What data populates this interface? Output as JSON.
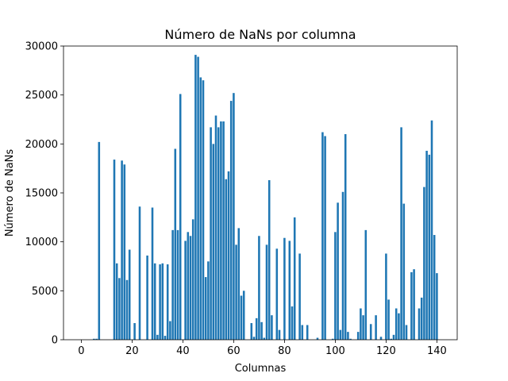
{
  "chart_data": {
    "type": "bar",
    "title": "Número de NaNs por columna",
    "xlabel": "Columnas",
    "ylabel": "Número de NaNs",
    "xlim": [
      -7,
      148
    ],
    "ylim": [
      0,
      30000
    ],
    "xticks": [
      0,
      20,
      40,
      60,
      80,
      100,
      120,
      140
    ],
    "yticks": [
      0,
      5000,
      10000,
      15000,
      20000,
      25000,
      30000
    ],
    "grid": false,
    "bar_color": "#1f77b4",
    "x": [
      0,
      1,
      2,
      3,
      4,
      5,
      6,
      7,
      8,
      9,
      10,
      11,
      12,
      13,
      14,
      15,
      16,
      17,
      18,
      19,
      20,
      21,
      22,
      23,
      24,
      25,
      26,
      27,
      28,
      29,
      30,
      31,
      32,
      33,
      34,
      35,
      36,
      37,
      38,
      39,
      40,
      41,
      42,
      43,
      44,
      45,
      46,
      47,
      48,
      49,
      50,
      51,
      52,
      53,
      54,
      55,
      56,
      57,
      58,
      59,
      60,
      61,
      62,
      63,
      64,
      65,
      66,
      67,
      68,
      69,
      70,
      71,
      72,
      73,
      74,
      75,
      76,
      77,
      78,
      79,
      80,
      81,
      82,
      83,
      84,
      85,
      86,
      87,
      88,
      89,
      90,
      91,
      92,
      93,
      94,
      95,
      96,
      97,
      98,
      99,
      100,
      101,
      102,
      103,
      104,
      105,
      106,
      107,
      108,
      109,
      110,
      111,
      112,
      113,
      114,
      115,
      116,
      117,
      118,
      119,
      120,
      121,
      122,
      123,
      124,
      125,
      126,
      127,
      128,
      129,
      130,
      131,
      132,
      133,
      134,
      135,
      136,
      137,
      138,
      139,
      140
    ],
    "values": [
      0,
      0,
      0,
      0,
      0,
      100,
      100,
      20200,
      0,
      0,
      0,
      0,
      0,
      18400,
      7800,
      6300,
      18300,
      17900,
      6100,
      9200,
      0,
      1700,
      0,
      13600,
      0,
      0,
      8600,
      0,
      13500,
      7800,
      500,
      7700,
      7800,
      400,
      7700,
      1900,
      11200,
      19500,
      11200,
      25100,
      0,
      10100,
      11000,
      10600,
      12300,
      29100,
      28900,
      26800,
      26500,
      6400,
      8000,
      21700,
      20000,
      22900,
      21700,
      22300,
      22300,
      16400,
      17200,
      24400,
      25200,
      9700,
      11400,
      4500,
      5000,
      0,
      0,
      1700,
      300,
      2200,
      10600,
      1800,
      200,
      9700,
      16300,
      2500,
      0,
      9300,
      1000,
      0,
      10400,
      0,
      10100,
      3400,
      12500,
      0,
      8800,
      1500,
      0,
      1500,
      0,
      0,
      0,
      200,
      0,
      21200,
      20800,
      0,
      0,
      100,
      11000,
      14000,
      1000,
      15100,
      21000,
      800,
      100,
      0,
      0,
      800,
      3200,
      2500,
      11200,
      0,
      1600,
      0,
      2500,
      0,
      300,
      0,
      8800,
      4100,
      100,
      500,
      3200,
      2700,
      21700,
      13900,
      1500,
      0,
      6900,
      7200,
      0,
      3200,
      4300,
      15600,
      19300,
      18900,
      22400,
      10700,
      6800
    ]
  }
}
